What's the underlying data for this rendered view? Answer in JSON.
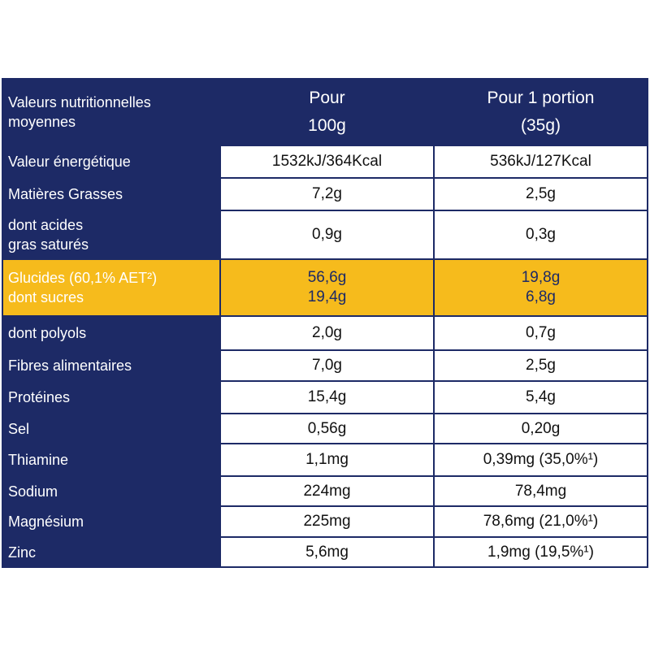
{
  "header": [
    [
      "Valeurs nutritionnelles",
      "moyennes"
    ],
    [
      "Pour",
      "100g"
    ],
    [
      "Pour 1 portion",
      "(35g)"
    ]
  ],
  "rows": [
    [
      [
        "Valeur énergétique"
      ],
      [
        "1532kJ/364Kcal"
      ],
      [
        "536kJ/127Kcal"
      ]
    ],
    [
      [
        "Matières Grasses"
      ],
      [
        "7,2g"
      ],
      [
        "2,5g"
      ]
    ],
    [
      [
        "dont acides",
        "gras saturés"
      ],
      [
        "0,9g"
      ],
      [
        "0,3g"
      ]
    ],
    [
      [
        "Glucides (60,1% AET²)",
        "dont sucres"
      ],
      [
        "56,6g",
        "19,4g"
      ],
      [
        "19,8g",
        "6,8g"
      ]
    ],
    [
      [
        "dont polyols"
      ],
      [
        "2,0g"
      ],
      [
        "0,7g"
      ]
    ],
    [
      [
        "Fibres alimentaires"
      ],
      [
        "7,0g"
      ],
      [
        "2,5g"
      ]
    ],
    [
      [
        "Protéines"
      ],
      [
        "15,4g"
      ],
      [
        "5,4g"
      ]
    ],
    [
      [
        "Sel"
      ],
      [
        "0,56g"
      ],
      [
        "0,20g"
      ]
    ],
    [
      [
        "Thiamine"
      ],
      [
        "1,1mg"
      ],
      [
        "0,39mg (35,0%¹)"
      ]
    ],
    [
      [
        "Sodium"
      ],
      [
        "224mg"
      ],
      [
        "78,4mg"
      ]
    ],
    [
      [
        "Magnésium"
      ],
      [
        "225mg"
      ],
      [
        "78,6mg (21,0%¹)"
      ]
    ],
    [
      [
        "Zinc"
      ],
      [
        "5,6mg"
      ],
      [
        "1,9mg (19,5%¹)"
      ]
    ]
  ]
}
